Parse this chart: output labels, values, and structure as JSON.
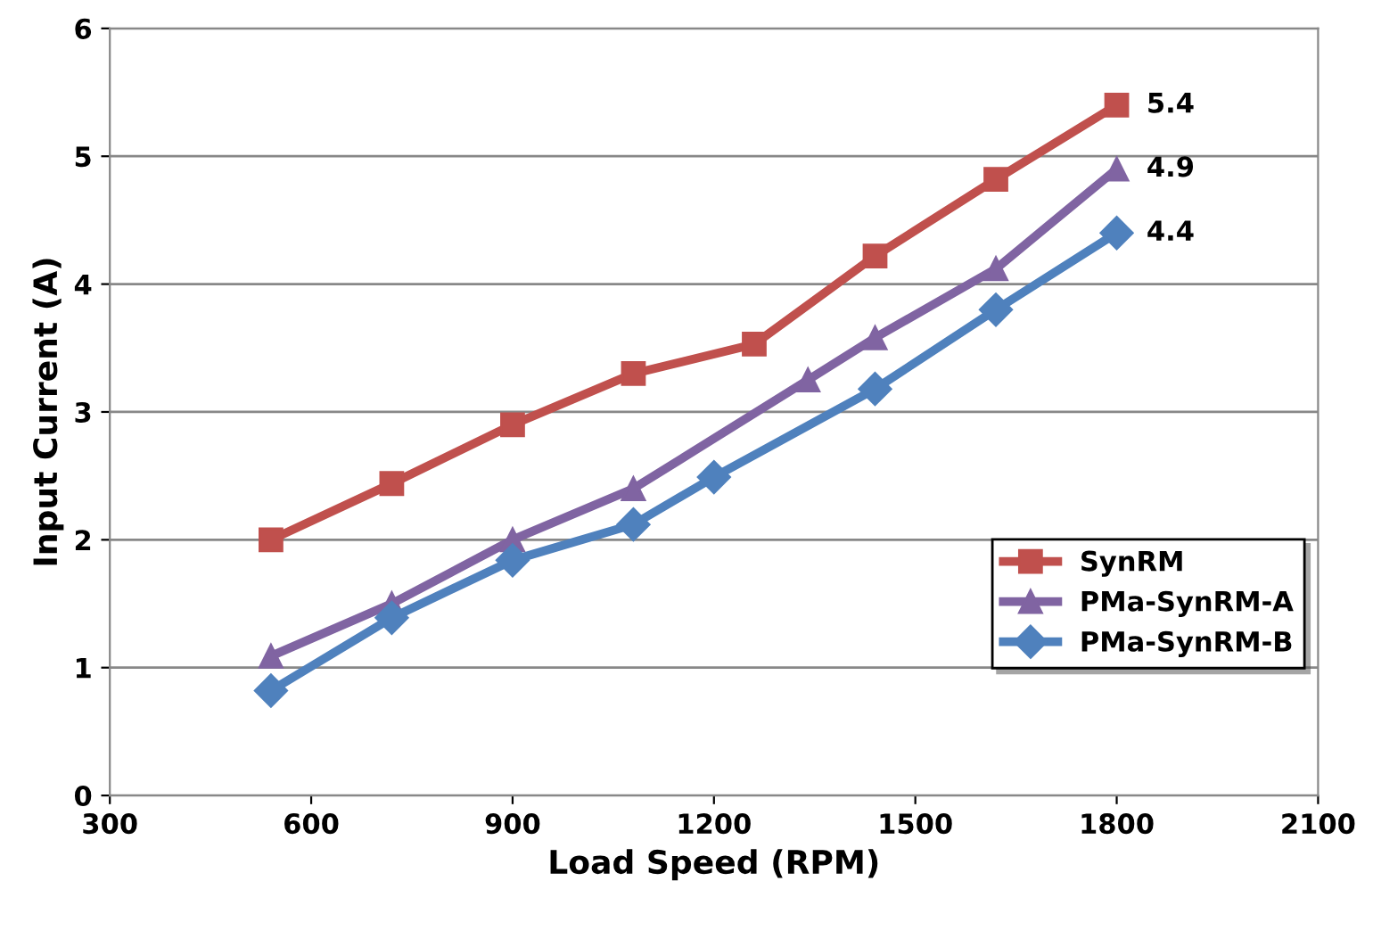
{
  "chart_data": {
    "type": "line",
    "xlabel": "Load Speed (RPM)",
    "ylabel": "Input Current (A)",
    "xlim": [
      300,
      2100
    ],
    "xticks": [
      300,
      600,
      900,
      1200,
      1500,
      1800,
      2100
    ],
    "ylim": [
      0,
      6
    ],
    "yticks": [
      0,
      1,
      2,
      3,
      4,
      5,
      6
    ],
    "grid": "y",
    "legend": "right",
    "series": [
      {
        "name": "SynRM",
        "color": "#c0504d",
        "marker": "square",
        "x": [
          540,
          720,
          900,
          1080,
          1260,
          1440,
          1620,
          1800
        ],
        "values": [
          2.0,
          2.44,
          2.9,
          3.3,
          3.53,
          4.22,
          4.82,
          5.4
        ],
        "value_labels": [
          null,
          null,
          null,
          null,
          null,
          null,
          null,
          "5.4"
        ]
      },
      {
        "name": "PMa-SynRM-A",
        "color": "#8064a2",
        "marker": "triangle",
        "x": [
          540,
          720,
          900,
          1080,
          1340,
          1440,
          1620,
          1800
        ],
        "values": [
          1.09,
          1.5,
          2.0,
          2.4,
          3.25,
          3.58,
          4.12,
          4.9
        ],
        "value_labels": [
          null,
          null,
          null,
          null,
          null,
          null,
          null,
          "4.9"
        ]
      },
      {
        "name": "PMa-SynRM-B",
        "color": "#4f81bd",
        "marker": "diamond",
        "x": [
          540,
          720,
          900,
          1080,
          1200,
          1440,
          1620,
          1800
        ],
        "values": [
          0.82,
          1.39,
          1.84,
          2.12,
          2.49,
          3.18,
          3.8,
          4.4
        ],
        "value_labels": [
          null,
          null,
          null,
          null,
          null,
          null,
          null,
          "4.4"
        ]
      }
    ]
  }
}
